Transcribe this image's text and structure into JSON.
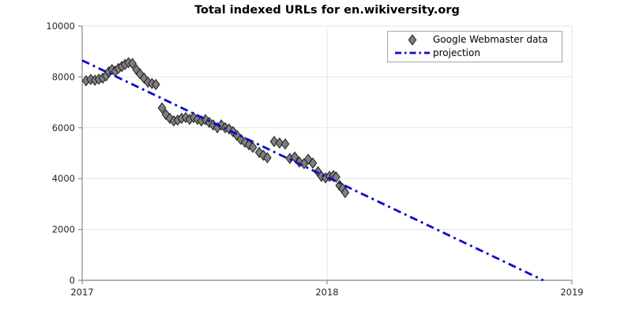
{
  "chart_data": {
    "type": "scatter",
    "title": "Total indexed URLs for en.wikiversity.org",
    "xlabel": "",
    "ylabel": "",
    "xlim": [
      2017,
      2019
    ],
    "ylim": [
      0,
      10000
    ],
    "xticks": [
      2017,
      2018,
      2019
    ],
    "xtick_labels": [
      "2017",
      "2018",
      "2019"
    ],
    "yticks": [
      0,
      2000,
      4000,
      6000,
      8000,
      10000
    ],
    "ytick_labels": [
      "0",
      "2000",
      "4000",
      "6000",
      "8000",
      "10000"
    ],
    "grid": true,
    "grid_color": "#e6e6e6",
    "axis_color": "#999999",
    "tick_color": "#8c8c8c",
    "tick_label_color": "#262626",
    "legend": {
      "position": "upper-right",
      "entries": [
        "Google Webmaster data",
        "projection"
      ]
    },
    "series": [
      {
        "name": "Google Webmaster data",
        "type": "scatter",
        "marker": "thin-diamond",
        "marker_fill": "#7f7f7f",
        "marker_edge": "#1c1c1c",
        "points": [
          [
            2017.016,
            7850
          ],
          [
            2017.035,
            7900
          ],
          [
            2017.052,
            7870
          ],
          [
            2017.068,
            7910
          ],
          [
            2017.084,
            7950
          ],
          [
            2017.098,
            8040
          ],
          [
            2017.109,
            8200
          ],
          [
            2017.122,
            8290
          ],
          [
            2017.135,
            8220
          ],
          [
            2017.148,
            8330
          ],
          [
            2017.162,
            8410
          ],
          [
            2017.175,
            8490
          ],
          [
            2017.189,
            8560
          ],
          [
            2017.205,
            8530
          ],
          [
            2017.222,
            8280
          ],
          [
            2017.236,
            8120
          ],
          [
            2017.253,
            7950
          ],
          [
            2017.269,
            7790
          ],
          [
            2017.285,
            7740
          ],
          [
            2017.301,
            7700
          ],
          [
            2017.326,
            6780
          ],
          [
            2017.342,
            6520
          ],
          [
            2017.358,
            6370
          ],
          [
            2017.374,
            6270
          ],
          [
            2017.39,
            6300
          ],
          [
            2017.406,
            6370
          ],
          [
            2017.423,
            6400
          ],
          [
            2017.439,
            6330
          ],
          [
            2017.455,
            6400
          ],
          [
            2017.471,
            6330
          ],
          [
            2017.487,
            6270
          ],
          [
            2017.503,
            6320
          ],
          [
            2017.519,
            6210
          ],
          [
            2017.535,
            6110
          ],
          [
            2017.552,
            6000
          ],
          [
            2017.568,
            6110
          ],
          [
            2017.584,
            6000
          ],
          [
            2017.6,
            5950
          ],
          [
            2017.616,
            5850
          ],
          [
            2017.632,
            5700
          ],
          [
            2017.648,
            5540
          ],
          [
            2017.665,
            5430
          ],
          [
            2017.681,
            5330
          ],
          [
            2017.697,
            5230
          ],
          [
            2017.723,
            5030
          ],
          [
            2017.74,
            4920
          ],
          [
            2017.756,
            4820
          ],
          [
            2017.784,
            5460
          ],
          [
            2017.806,
            5400
          ],
          [
            2017.829,
            5360
          ],
          [
            2017.848,
            4790
          ],
          [
            2017.868,
            4850
          ],
          [
            2017.887,
            4650
          ],
          [
            2017.906,
            4590
          ],
          [
            2017.923,
            4760
          ],
          [
            2017.942,
            4610
          ],
          [
            2017.963,
            4270
          ],
          [
            2017.977,
            4090
          ],
          [
            2017.994,
            4030
          ],
          [
            2018.01,
            4090
          ],
          [
            2018.026,
            4120
          ],
          [
            2018.037,
            4060
          ],
          [
            2018.051,
            3730
          ],
          [
            2018.063,
            3610
          ],
          [
            2018.074,
            3450
          ]
        ]
      },
      {
        "name": "projection",
        "type": "line",
        "line_style": "dash-dot",
        "color": "#0a0acd",
        "line_width": 2.8,
        "points": [
          [
            2017.0,
            8650
          ],
          [
            2018.883,
            0
          ]
        ]
      }
    ]
  }
}
